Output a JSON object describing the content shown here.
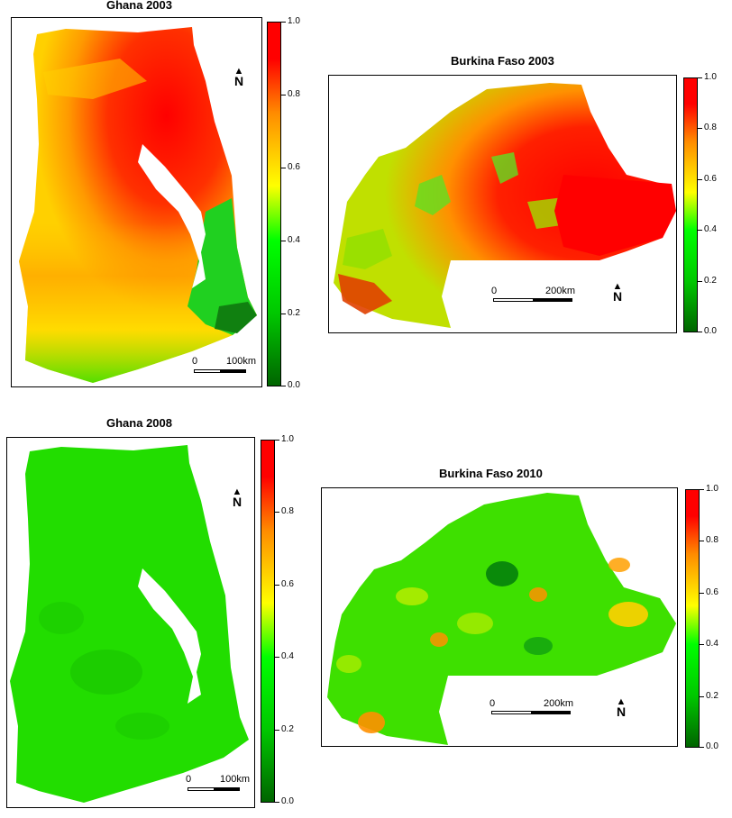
{
  "panels": [
    {
      "id": "ghana-2003",
      "title": "Ghana 2003",
      "scale_zero": "0",
      "scale_label": "100km",
      "north": "N"
    },
    {
      "id": "burkina-2003",
      "title": "Burkina Faso 2003",
      "scale_zero": "0",
      "scale_label": "200km",
      "north": "N"
    },
    {
      "id": "ghana-2008",
      "title": "Ghana 2008",
      "scale_zero": "0",
      "scale_label": "100km",
      "north": "N"
    },
    {
      "id": "burkina-2010",
      "title": "Burkina Faso 2010",
      "scale_zero": "0",
      "scale_label": "200km",
      "north": "N"
    }
  ],
  "legend": {
    "ticks": [
      "1.0",
      "0.8",
      "0.6",
      "0.4",
      "0.2",
      "0.0"
    ],
    "colors": {
      "low": "#006400",
      "mid_low": "#00ff00",
      "mid": "#ffff00",
      "mid_high": "#ff8c00",
      "high": "#ff0000"
    }
  }
}
